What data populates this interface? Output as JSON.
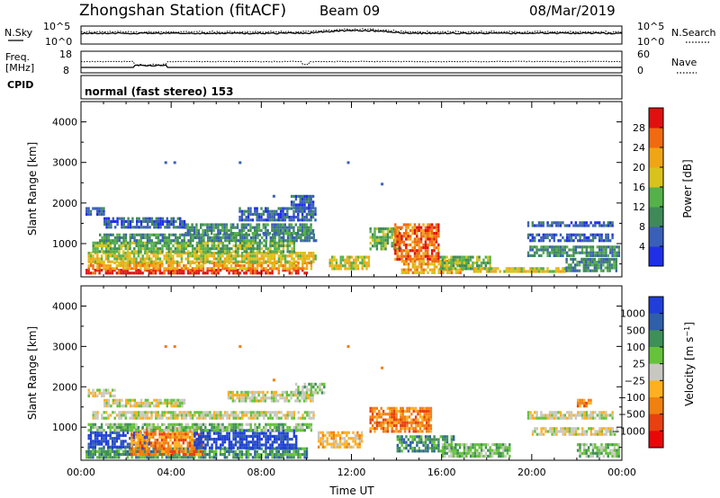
{
  "header": {
    "station": "Zhongshan Station (fitACF)",
    "beam": "Beam 09",
    "date": "08/Mar/2019"
  },
  "noise_panel": {
    "left_label": "N.Sky",
    "right_label": "N.Search",
    "left_ticks": [
      "10^5",
      "10^0"
    ],
    "right_ticks": [
      "10^5",
      "10^0"
    ]
  },
  "freq_panel": {
    "left_label_1": "Freq.",
    "left_label_2": "[MHz]",
    "right_label": "Nave",
    "left_ticks": [
      "18",
      "8"
    ],
    "right_ticks": [
      "60",
      "0"
    ]
  },
  "cpid": {
    "label": "CPID",
    "mode": "normal (fast stereo) 153"
  },
  "chart_data": [
    {
      "type": "heatmap",
      "quantity": "Power",
      "xlabel": "Time UT",
      "ylabel": "Slant Range [km]",
      "colorbar_label": "Power [dB]",
      "x_range_hours": [
        0,
        24
      ],
      "y_range_km": [
        180,
        4500
      ],
      "y_ticks": [
        "1000",
        "2000",
        "3000",
        "4000"
      ],
      "colorbar_ticks": [
        "4",
        "8",
        "12",
        "16",
        "20",
        "24",
        "28"
      ],
      "colorbar_range": [
        0,
        32
      ],
      "colors": [
        "#1f2fe8",
        "#3a5fb8",
        "#3f8a58",
        "#55b14a",
        "#d9c21c",
        "#f0a516",
        "#f06a10",
        "#e01010"
      ],
      "echo_regions": [
        {
          "t": [
            0.2,
            10.0
          ],
          "r": [
            250,
            380
          ],
          "level": 7
        },
        {
          "t": [
            0.3,
            10.2
          ],
          "r": [
            380,
            560
          ],
          "level": 5
        },
        {
          "t": [
            0.3,
            10.4
          ],
          "r": [
            560,
            800
          ],
          "level": 4
        },
        {
          "t": [
            0.5,
            9.5
          ],
          "r": [
            800,
            1050
          ],
          "level": 3
        },
        {
          "t": [
            0.8,
            10.4
          ],
          "r": [
            1050,
            1250
          ],
          "level": 2
        },
        {
          "t": [
            1.0,
            4.6
          ],
          "r": [
            1400,
            1650
          ],
          "level": 1
        },
        {
          "t": [
            4.6,
            10.3
          ],
          "r": [
            1250,
            1500
          ],
          "level": 2
        },
        {
          "t": [
            0.2,
            1.0
          ],
          "r": [
            1700,
            1900
          ],
          "level": 1
        },
        {
          "t": [
            7.0,
            10.4
          ],
          "r": [
            1600,
            1900
          ],
          "level": 1
        },
        {
          "t": [
            9.3,
            10.3
          ],
          "r": [
            1900,
            2200
          ],
          "level": 1
        },
        {
          "t": [
            11.0,
            12.8
          ],
          "r": [
            350,
            700
          ],
          "level": 4
        },
        {
          "t": [
            12.8,
            14.2
          ],
          "r": [
            900,
            1400
          ],
          "level": 3
        },
        {
          "t": [
            13.9,
            15.9
          ],
          "r": [
            600,
            1500
          ],
          "level": 6
        },
        {
          "t": [
            14.2,
            16.9
          ],
          "r": [
            280,
            600
          ],
          "level": 5
        },
        {
          "t": [
            15.9,
            18.2
          ],
          "r": [
            380,
            700
          ],
          "level": 3
        },
        {
          "t": [
            17.4,
            21.5
          ],
          "r": [
            280,
            420
          ],
          "level": 4
        },
        {
          "t": [
            19.8,
            23.6
          ],
          "r": [
            1100,
            1250
          ],
          "level": 1
        },
        {
          "t": [
            19.8,
            23.6
          ],
          "r": [
            1450,
            1550
          ],
          "level": 1
        },
        {
          "t": [
            19.8,
            23.9
          ],
          "r": [
            700,
            950
          ],
          "level": 2
        },
        {
          "t": [
            21.5,
            23.8
          ],
          "r": [
            350,
            650
          ],
          "level": 2
        }
      ]
    },
    {
      "type": "heatmap",
      "quantity": "Velocity",
      "xlabel": "Time UT",
      "ylabel": "Slant Range [km]",
      "colorbar_label": "Velocity [m s^-1]",
      "x_range_hours": [
        0,
        24
      ],
      "y_range_km": [
        180,
        4500
      ],
      "x_ticks": [
        "00:00",
        "04:00",
        "08:00",
        "12:00",
        "16:00",
        "20:00",
        "00:00"
      ],
      "y_ticks": [
        "1000",
        "2000",
        "3000",
        "4000"
      ],
      "colorbar_ticks": [
        "1000",
        "500",
        "100",
        "25",
        "−25",
        "−100",
        "−500",
        "−1000"
      ],
      "colors": [
        "#1f3fd8",
        "#2f5fa8",
        "#3f8f58",
        "#66c23a",
        "#c8c8c0",
        "#ffb020",
        "#f08010",
        "#e84010",
        "#e80808"
      ],
      "echo_regions": [
        {
          "t": [
            0.2,
            10.0
          ],
          "r": [
            250,
            500
          ],
          "level": 2
        },
        {
          "t": [
            0.3,
            3.0
          ],
          "r": [
            500,
            900
          ],
          "level": 0
        },
        {
          "t": [
            2.2,
            5.4
          ],
          "r": [
            350,
            1000
          ],
          "level": 6
        },
        {
          "t": [
            5.0,
            9.6
          ],
          "r": [
            500,
            950
          ],
          "level": 0
        },
        {
          "t": [
            0.3,
            10.2
          ],
          "r": [
            950,
            1100
          ],
          "level": 3
        },
        {
          "t": [
            0.5,
            10.3
          ],
          "r": [
            1250,
            1400
          ],
          "level": 4
        },
        {
          "t": [
            1.0,
            4.6
          ],
          "r": [
            1550,
            1700
          ],
          "level": 4
        },
        {
          "t": [
            0.3,
            1.5
          ],
          "r": [
            1800,
            1950
          ],
          "level": 4
        },
        {
          "t": [
            6.5,
            10.3
          ],
          "r": [
            1650,
            1900
          ],
          "level": 4
        },
        {
          "t": [
            9.5,
            10.8
          ],
          "r": [
            1850,
            2100
          ],
          "level": 3
        },
        {
          "t": [
            10.5,
            12.5
          ],
          "r": [
            500,
            900
          ],
          "level": 5
        },
        {
          "t": [
            12.8,
            15.5
          ],
          "r": [
            900,
            1500
          ],
          "level": 6
        },
        {
          "t": [
            14.0,
            16.5
          ],
          "r": [
            400,
            800
          ],
          "level": 2
        },
        {
          "t": [
            16.0,
            19.0
          ],
          "r": [
            300,
            600
          ],
          "level": 3
        },
        {
          "t": [
            19.8,
            23.6
          ],
          "r": [
            1250,
            1400
          ],
          "level": 4
        },
        {
          "t": [
            20.0,
            23.8
          ],
          "r": [
            800,
            1000
          ],
          "level": 4
        },
        {
          "t": [
            22.0,
            23.9
          ],
          "r": [
            300,
            600
          ],
          "level": 3
        },
        {
          "t": [
            22.0,
            22.6
          ],
          "r": [
            1500,
            1700
          ],
          "level": 6
        }
      ]
    }
  ]
}
